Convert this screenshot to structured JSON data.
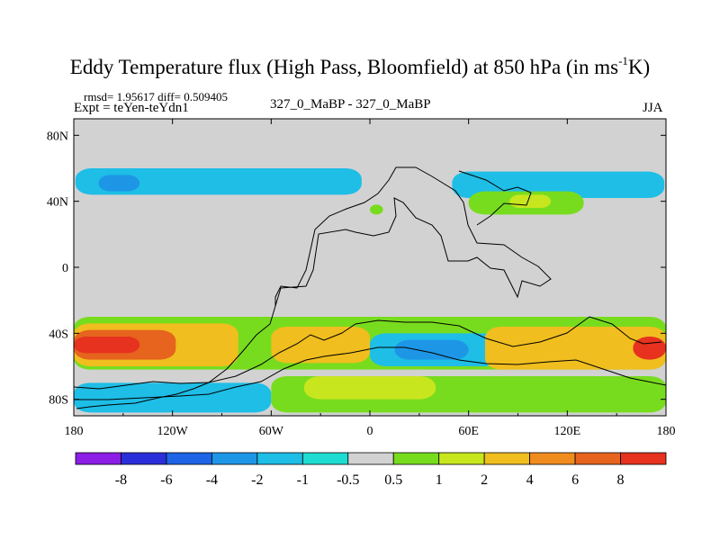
{
  "header": {
    "title_main": "Eddy Temperature flux (High Pass, Bloomfield) at 850 hPa (in ms",
    "title_sup": "-1",
    "title_end": "K)",
    "stats": "rmsd= 1.95617 diff= 0.509405",
    "expt": "Expt = teYen-teYdn1",
    "center": "327_0_MaBP - 327_0_MaBP",
    "season": "JJA"
  },
  "chart_data": {
    "type": "heatmap",
    "title": "Eddy Temperature flux (High Pass, Bloomfield) at 850 hPa (in ms-1K)",
    "xlabel": "",
    "ylabel": "",
    "x_range": [
      -180,
      180
    ],
    "y_range": [
      -90,
      90
    ],
    "x_ticks": [
      {
        "value": -180,
        "label": "180"
      },
      {
        "value": -120,
        "label": "120W"
      },
      {
        "value": -60,
        "label": "60W"
      },
      {
        "value": 0,
        "label": "0"
      },
      {
        "value": 60,
        "label": "60E"
      },
      {
        "value": 120,
        "label": "120E"
      },
      {
        "value": 180,
        "label": "180"
      }
    ],
    "y_ticks": [
      {
        "value": 80,
        "label": "80N"
      },
      {
        "value": 40,
        "label": "40N"
      },
      {
        "value": 0,
        "label": "0"
      },
      {
        "value": -40,
        "label": "40S"
      },
      {
        "value": -80,
        "label": "80S"
      }
    ],
    "colorbar": {
      "levels": [
        "-8",
        "-6",
        "-4",
        "-2",
        "-1",
        "-0.5",
        "0.5",
        "1",
        "2",
        "4",
        "6",
        "8"
      ],
      "colors": [
        "#8c1ee6",
        "#2b2fd9",
        "#1e64e6",
        "#1e96e6",
        "#1ebee6",
        "#1edcd2",
        "#d2d2d2",
        "#78dc1e",
        "#c8e61e",
        "#f0be1e",
        "#f08c1e",
        "#e6641e",
        "#e6321e"
      ]
    },
    "regions": [
      {
        "name": "north-pacific-negative",
        "color": "#1ebee6",
        "lon": [
          -179,
          -5
        ],
        "lat": [
          44,
          60
        ]
      },
      {
        "name": "north-pacific-core",
        "color": "#1e96e6",
        "lon": [
          -165,
          -140
        ],
        "lat": [
          46,
          56
        ]
      },
      {
        "name": "north-atlantic-spot",
        "color": "#1ebee6",
        "lon": [
          -92,
          -84
        ],
        "lat": [
          47,
          55
        ]
      },
      {
        "name": "eurasia-negative",
        "color": "#1ebee6",
        "lon": [
          50,
          179
        ],
        "lat": [
          42,
          58
        ]
      },
      {
        "name": "central-asia-positive",
        "color": "#78dc1e",
        "lon": [
          60,
          130
        ],
        "lat": [
          32,
          46
        ]
      },
      {
        "name": "central-asia-core",
        "color": "#c8e61e",
        "lon": [
          85,
          110
        ],
        "lat": [
          36,
          44
        ]
      },
      {
        "name": "europe-positive-spot",
        "color": "#78dc1e",
        "lon": [
          0,
          8
        ],
        "lat": [
          32,
          38
        ]
      },
      {
        "name": "southern-band-positive",
        "color": "#78dc1e",
        "lon": [
          -180,
          180
        ],
        "lat": [
          -62,
          -30
        ]
      },
      {
        "name": "south-pacific-orange",
        "color": "#f0be1e",
        "lon": [
          -180,
          -80
        ],
        "lat": [
          -60,
          -34
        ]
      },
      {
        "name": "south-pacific-strong",
        "color": "#e6641e",
        "lon": [
          -180,
          -118
        ],
        "lat": [
          -56,
          -38
        ]
      },
      {
        "name": "south-pacific-core",
        "color": "#e6321e",
        "lon": [
          -180,
          -140
        ],
        "lat": [
          -52,
          -42
        ]
      },
      {
        "name": "south-atlantic-orange",
        "color": "#f0be1e",
        "lon": [
          -60,
          0
        ],
        "lat": [
          -58,
          -36
        ]
      },
      {
        "name": "south-indian-negative",
        "color": "#1ebee6",
        "lon": [
          0,
          80
        ],
        "lat": [
          -60,
          -40
        ]
      },
      {
        "name": "south-indian-core",
        "color": "#1e96e6",
        "lon": [
          15,
          60
        ],
        "lat": [
          -56,
          -44
        ]
      },
      {
        "name": "australia-orange",
        "color": "#f0be1e",
        "lon": [
          70,
          180
        ],
        "lat": [
          -62,
          -36
        ]
      },
      {
        "name": "tasman-core",
        "color": "#e6321e",
        "lon": [
          160,
          180
        ],
        "lat": [
          -56,
          -42
        ]
      },
      {
        "name": "antarctic-negative",
        "color": "#1ebee6",
        "lon": [
          -180,
          -60
        ],
        "lat": [
          -88,
          -70
        ]
      },
      {
        "name": "antarctic-positive",
        "color": "#78dc1e",
        "lon": [
          -60,
          180
        ],
        "lat": [
          -88,
          -66
        ]
      },
      {
        "name": "antarctic-yellow",
        "color": "#c8e61e",
        "lon": [
          -40,
          40
        ],
        "lat": [
          -80,
          -66
        ]
      }
    ]
  }
}
